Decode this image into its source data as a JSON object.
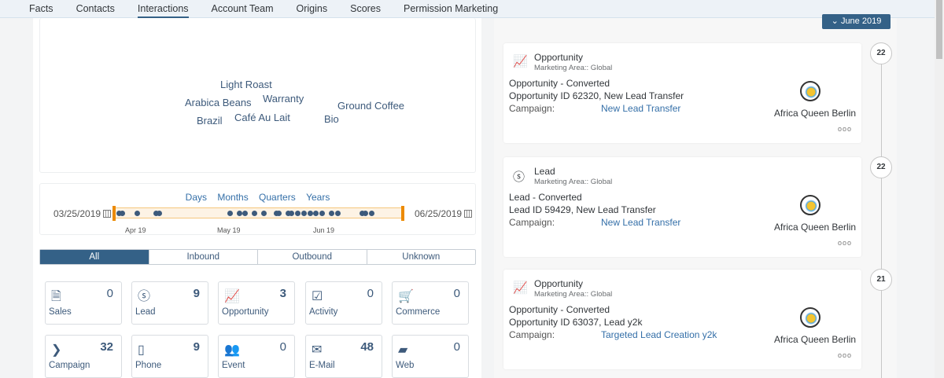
{
  "tabs": [
    "Facts",
    "Contacts",
    "Interactions",
    "Account Team",
    "Origins",
    "Scores",
    "Permission Marketing"
  ],
  "active_tab": "Interactions",
  "word_cloud": [
    "Light Roast",
    "Arabica Beans",
    "Warranty",
    "Ground Coffee",
    "Brazil",
    "Café Au Lait",
    "Bio"
  ],
  "timeline": {
    "scales": [
      "Days",
      "Months",
      "Quarters",
      "Years"
    ],
    "start": "03/25/2019",
    "end": "06/25/2019",
    "ticks": [
      "Apr 19",
      "May 19",
      "Jun 19"
    ],
    "interaction_dates": [
      "2019-03-25",
      "2019-03-26",
      "2019-03-31",
      "2019-04-06",
      "2019-04-07",
      "2019-04-30",
      "2019-05-03",
      "2019-05-05",
      "2019-05-08",
      "2019-05-11",
      "2019-05-15",
      "2019-05-16",
      "2019-05-19",
      "2019-05-20",
      "2019-05-22",
      "2019-05-24",
      "2019-05-26",
      "2019-05-28",
      "2019-05-30",
      "2019-06-02",
      "2019-06-04",
      "2019-06-12",
      "2019-06-13",
      "2019-06-15"
    ],
    "handle_color": "#ec8a00"
  },
  "direction": {
    "options": [
      "All",
      "Inbound",
      "Outbound",
      "Unknown"
    ],
    "selected": "All"
  },
  "tiles": [
    {
      "label": "Sales",
      "count": "0",
      "icon": "sales-document-icon"
    },
    {
      "label": "Lead",
      "count": "9",
      "icon": "dollar-circle-icon"
    },
    {
      "label": "Opportunity",
      "count": "3",
      "icon": "opportunity-chart-icon"
    },
    {
      "label": "Activity",
      "count": "0",
      "icon": "checklist-icon"
    },
    {
      "label": "Commerce",
      "count": "0",
      "icon": "cart-icon"
    },
    {
      "label": "Campaign",
      "count": "32",
      "icon": "chevron-circle-icon"
    },
    {
      "label": "Phone",
      "count": "9",
      "icon": "phone-icon"
    },
    {
      "label": "Event",
      "count": "0",
      "icon": "people-icon"
    },
    {
      "label": "E-Mail",
      "count": "48",
      "icon": "envelope-icon"
    },
    {
      "label": "Web",
      "count": "0",
      "icon": "web-icon"
    }
  ],
  "month_button": "June 2019",
  "events": [
    {
      "day": "22",
      "type": "Opportunity",
      "area": "Marketing Area:: Global",
      "line1": "Opportunity - Converted",
      "line2": "Opportunity ID 62320, New Lead Transfer",
      "campaign_label": "Campaign:",
      "campaign": "New Lead Transfer",
      "account": "Africa Queen Berlin",
      "more": "ooo"
    },
    {
      "day": "22",
      "type": "Lead",
      "area": "Marketing Area:: Global",
      "line1": "Lead - Converted",
      "line2": "Lead ID 59429, New Lead Transfer",
      "campaign_label": "Campaign:",
      "campaign": "New Lead Transfer",
      "account": "Africa Queen Berlin",
      "more": "ooo"
    },
    {
      "day": "21",
      "type": "Opportunity",
      "area": "Marketing Area:: Global",
      "line1": "Opportunity - Converted",
      "line2": "Opportunity ID 63037, Lead y2k",
      "campaign_label": "Campaign:",
      "campaign": "Targeted Lead Creation y2k",
      "account": "Africa Queen Berlin",
      "more": "ooo"
    }
  ],
  "accent": "#346187"
}
